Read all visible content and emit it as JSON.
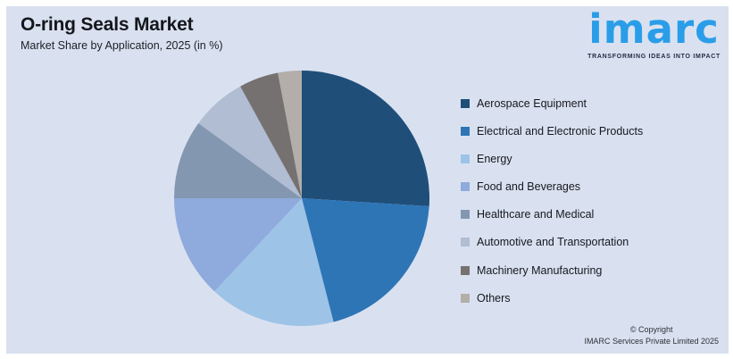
{
  "header": {
    "title": "O-ring Seals Market",
    "subtitle": "Market Share by Application, 2025 (in %)"
  },
  "logo": {
    "brand": "imarc",
    "tagline": "TRANSFORMING IDEAS INTO IMPACT",
    "brand_color": "#2A9DE8",
    "tagline_color": "#1F2A44"
  },
  "chart_data": {
    "type": "pie",
    "title": "O-ring Seals Market",
    "subtitle": "Market Share by Application, 2025 (in %)",
    "unit": "%",
    "labels": [
      "Aerospace Equipment",
      "Electrical and Electronic Products",
      "Energy",
      "Food and Beverages",
      "Healthcare and Medical",
      "Automotive and Transportation",
      "Machinery Manufacturing",
      "Others"
    ],
    "values": [
      26,
      20,
      16,
      13,
      10,
      7,
      5,
      3
    ],
    "colors": [
      "#1F4E79",
      "#2E75B6",
      "#9DC3E6",
      "#8FAADC",
      "#8497B0",
      "#B0BDD3",
      "#767171",
      "#B3AEAA"
    ],
    "start_angle_deg": 0,
    "direction": "clockwise",
    "legend_position": "right",
    "data_labels_shown": false
  },
  "footer": {
    "line1": "© Copyright",
    "line2": "IMARC Services Private Limited 2025"
  },
  "theme": {
    "page_background": "#FFFFFF",
    "card_background": "#D9E1F0"
  }
}
